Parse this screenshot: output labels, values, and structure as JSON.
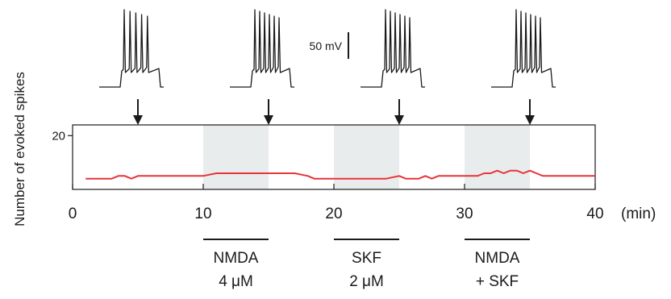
{
  "chart_data": {
    "type": "line",
    "title": "",
    "xlabel": "(min)",
    "ylabel": "Number of evoked spikes",
    "xlim": [
      0,
      40
    ],
    "ylim": [
      0,
      24
    ],
    "x_ticks": [
      "0",
      "10",
      "20",
      "30",
      "40"
    ],
    "y_ticks": [
      "20"
    ],
    "grid": false,
    "series": [
      {
        "color": "#e8343a",
        "x": [
          1,
          2,
          3,
          3.5,
          4,
          4.5,
          5,
          6,
          7,
          8,
          9,
          10,
          11,
          12,
          13,
          14,
          15,
          16,
          17,
          18,
          18.5,
          19,
          20,
          21,
          22,
          23,
          24,
          25,
          25.5,
          26,
          26.5,
          27,
          27.5,
          28,
          28.5,
          29,
          30,
          31,
          31.5,
          32,
          32.5,
          33,
          33.5,
          34,
          34.5,
          35,
          35.5,
          36,
          37,
          38,
          39,
          40
        ],
        "y": [
          4,
          4,
          4,
          5,
          5,
          4,
          5,
          5,
          5,
          5,
          5,
          5,
          6,
          6,
          6,
          6,
          6,
          6,
          6,
          5,
          4,
          4,
          4,
          4,
          4,
          4,
          4,
          5,
          4,
          4,
          4,
          5,
          4,
          5,
          5,
          5,
          5,
          5,
          6,
          6,
          7,
          6,
          7,
          7,
          6,
          7,
          6,
          5,
          5,
          5,
          5,
          5
        ]
      }
    ],
    "shaded_periods": [
      [
        10,
        15
      ],
      [
        20,
        25
      ],
      [
        30,
        35
      ]
    ],
    "traces_at_min": [
      5,
      15,
      25,
      35
    ],
    "treatments": [
      {
        "line1": "NMDA",
        "line2": "4 μM",
        "start": 10,
        "end": 15
      },
      {
        "line1": "SKF",
        "line2": "2 μM",
        "start": 20,
        "end": 25
      },
      {
        "line1": "NMDA",
        "line2": "+ SKF",
        "start": 30,
        "end": 35
      }
    ],
    "scale_bar": "50 mV",
    "colors": {
      "series": "#e8343a",
      "shade": "#e9ecec",
      "ink": "#1a1a1a"
    }
  }
}
